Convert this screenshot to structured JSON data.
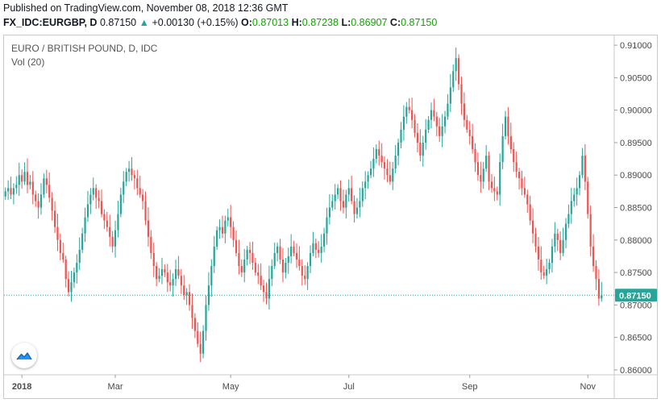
{
  "header": {
    "published": "Published on TradingView.com, November 08, 2018 12:36 GMT",
    "symbol": "FX_IDC:EURGBP, D",
    "last": "0.87150",
    "change": "+0.00130 (+0.15%)",
    "o_label": "O:",
    "o_value": "0.87013",
    "h_label": "H:",
    "h_value": "0.87238",
    "l_label": "L:",
    "l_value": "0.86907",
    "c_label": "C:",
    "c_value": "0.87150"
  },
  "pane": {
    "title": "EURO / BRITISH POUND, D, IDC",
    "volume_label": "Vol (20)"
  },
  "chart_data": {
    "type": "candlestick",
    "title": "EURO / BRITISH POUND, D, IDC",
    "y_range": [
      0.8595,
      0.9115
    ],
    "y_ticks": [
      "0.91000",
      "0.90500",
      "0.90000",
      "0.89500",
      "0.89000",
      "0.88500",
      "0.88000",
      "0.87500",
      "0.87000",
      "0.86500",
      "0.86000"
    ],
    "x_ticks": [
      {
        "label": "2018",
        "index": 6,
        "bold": true
      },
      {
        "label": "Mar",
        "index": 40
      },
      {
        "label": "May",
        "index": 82
      },
      {
        "label": "Jul",
        "index": 125
      },
      {
        "label": "Sep",
        "index": 169
      },
      {
        "label": "Nov",
        "index": 212
      }
    ],
    "last_price": 0.8715,
    "last_price_label": "0.87150",
    "up_color": "#26a69a",
    "down_color": "#ef5350",
    "close": [
      0.8875,
      0.888,
      0.887,
      0.888,
      0.8885,
      0.89,
      0.889,
      0.8905,
      0.8885,
      0.889,
      0.887,
      0.886,
      0.885,
      0.887,
      0.8895,
      0.8885,
      0.8865,
      0.8845,
      0.882,
      0.88,
      0.878,
      0.877,
      0.874,
      0.872,
      0.8735,
      0.875,
      0.8765,
      0.8785,
      0.881,
      0.8835,
      0.8855,
      0.887,
      0.888,
      0.8865,
      0.886,
      0.884,
      0.883,
      0.882,
      0.8805,
      0.879,
      0.8815,
      0.884,
      0.887,
      0.889,
      0.8905,
      0.891,
      0.89,
      0.8895,
      0.888,
      0.887,
      0.886,
      0.883,
      0.8805,
      0.878,
      0.876,
      0.874,
      0.8745,
      0.8755,
      0.875,
      0.8735,
      0.873,
      0.874,
      0.8755,
      0.8745,
      0.873,
      0.8715,
      0.872,
      0.87,
      0.868,
      0.866,
      0.864,
      0.8625,
      0.866,
      0.87,
      0.873,
      0.876,
      0.879,
      0.8815,
      0.882,
      0.881,
      0.883,
      0.8835,
      0.882,
      0.88,
      0.878,
      0.876,
      0.875,
      0.877,
      0.8785,
      0.878,
      0.8765,
      0.875,
      0.8745,
      0.873,
      0.872,
      0.871,
      0.874,
      0.876,
      0.878,
      0.879,
      0.877,
      0.875,
      0.8765,
      0.8775,
      0.879,
      0.878,
      0.877,
      0.876,
      0.8745,
      0.874,
      0.876,
      0.878,
      0.8795,
      0.8785,
      0.878,
      0.879,
      0.881,
      0.8835,
      0.885,
      0.886,
      0.887,
      0.888,
      0.886,
      0.885,
      0.887,
      0.888,
      0.886,
      0.884,
      0.885,
      0.886,
      0.888,
      0.889,
      0.89,
      0.891,
      0.8925,
      0.894,
      0.893,
      0.892,
      0.891,
      0.89,
      0.889,
      0.891,
      0.893,
      0.895,
      0.897,
      0.899,
      0.9005,
      0.9,
      0.8985,
      0.8965,
      0.895,
      0.893,
      0.895,
      0.897,
      0.8985,
      0.9,
      0.899,
      0.8975,
      0.896,
      0.8975,
      0.899,
      0.901,
      0.9035,
      0.906,
      0.908,
      0.904,
      0.901,
      0.8985,
      0.897,
      0.896,
      0.894,
      0.892,
      0.89,
      0.889,
      0.891,
      0.893,
      0.889,
      0.888,
      0.8875,
      0.887,
      0.892,
      0.896,
      0.899,
      0.896,
      0.894,
      0.892,
      0.8905,
      0.8895,
      0.888,
      0.887,
      0.8855,
      0.883,
      0.881,
      0.879,
      0.877,
      0.875,
      0.8745,
      0.8755,
      0.8765,
      0.879,
      0.881,
      0.88,
      0.878,
      0.88,
      0.8825,
      0.884,
      0.886,
      0.887,
      0.888,
      0.89,
      0.893,
      0.889,
      0.884,
      0.879,
      0.876,
      0.874,
      0.871,
      0.8715
    ]
  }
}
